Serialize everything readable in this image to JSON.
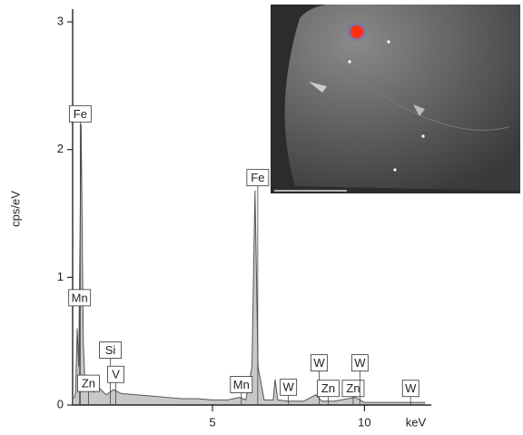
{
  "chart_data": {
    "type": "area",
    "x_label": "keV",
    "y_label": "cps/eV",
    "x": [
      0.45,
      0.5,
      0.55,
      0.6,
      0.68,
      0.75,
      0.8,
      0.9,
      1.0,
      1.1,
      1.25,
      1.5,
      1.75,
      2.0,
      2.5,
      3.0,
      3.5,
      4.0,
      4.5,
      5.0,
      5.5,
      5.9,
      6.1,
      6.3,
      6.4,
      6.5,
      6.7,
      7.0,
      7.06,
      7.15,
      7.5,
      8.0,
      8.4,
      8.6,
      9.0,
      9.7,
      10.0,
      11.0,
      12.0
    ],
    "values": [
      0.05,
      0.1,
      0.6,
      0.3,
      2.2,
      0.5,
      0.2,
      0.15,
      0.12,
      0.1,
      0.14,
      0.08,
      0.12,
      0.09,
      0.08,
      0.07,
      0.06,
      0.05,
      0.05,
      0.04,
      0.04,
      0.06,
      0.04,
      0.3,
      1.68,
      0.3,
      0.04,
      0.04,
      0.2,
      0.04,
      0.03,
      0.03,
      0.08,
      0.03,
      0.03,
      0.06,
      0.02,
      0.02,
      0.02
    ],
    "color": "#c8c8c8",
    "xlim": [
      0.4,
      12.2
    ],
    "xticks": [
      5,
      10
    ],
    "ylim": [
      0,
      3.1
    ],
    "yticks": [
      0,
      1,
      2,
      3
    ],
    "annotations": [
      {
        "label": "Fe",
        "x": 0.65,
        "y": 2.28
      },
      {
        "label": "Mn",
        "x": 0.63,
        "y": 0.84
      },
      {
        "label": "Si",
        "x": 1.64,
        "y": 0.43
      },
      {
        "label": "Zn",
        "x": 0.92,
        "y": 0.17
      },
      {
        "label": "V",
        "x": 1.82,
        "y": 0.24
      },
      {
        "label": "Fe",
        "x": 6.49,
        "y": 1.78
      },
      {
        "label": "Mn",
        "x": 5.95,
        "y": 0.16
      },
      {
        "label": "W",
        "x": 7.5,
        "y": 0.14
      },
      {
        "label": "W",
        "x": 8.51,
        "y": 0.33
      },
      {
        "label": "Zn",
        "x": 8.81,
        "y": 0.13
      },
      {
        "label": "Zn",
        "x": 9.63,
        "y": 0.13
      },
      {
        "label": "W",
        "x": 9.85,
        "y": 0.33
      },
      {
        "label": "W",
        "x": 11.52,
        "y": 0.13
      }
    ]
  }
}
